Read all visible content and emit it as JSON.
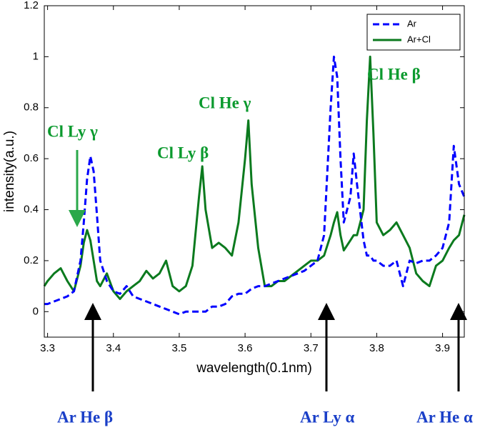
{
  "chart_data": {
    "type": "line",
    "xlabel": "wavelength(0.1nm)",
    "ylabel": "intensity(a.u.)",
    "x": [
      3.295,
      3.3,
      3.31,
      3.32,
      3.33,
      3.34,
      3.35,
      3.355,
      3.36,
      3.365,
      3.37,
      3.375,
      3.38,
      3.39,
      3.4,
      3.41,
      3.42,
      3.43,
      3.44,
      3.45,
      3.46,
      3.47,
      3.48,
      3.49,
      3.5,
      3.51,
      3.52,
      3.53,
      3.535,
      3.54,
      3.55,
      3.56,
      3.57,
      3.58,
      3.59,
      3.6,
      3.605,
      3.61,
      3.62,
      3.63,
      3.64,
      3.65,
      3.66,
      3.67,
      3.68,
      3.69,
      3.7,
      3.71,
      3.72,
      3.73,
      3.735,
      3.74,
      3.745,
      3.75,
      3.76,
      3.765,
      3.77,
      3.78,
      3.785,
      3.79,
      3.795,
      3.8,
      3.81,
      3.82,
      3.83,
      3.84,
      3.85,
      3.86,
      3.87,
      3.88,
      3.89,
      3.9,
      3.91,
      3.917,
      3.925,
      3.933
    ],
    "series": [
      {
        "name": "Ar",
        "color": "#0000ff",
        "dashed": true,
        "values": [
          0.03,
          0.03,
          0.04,
          0.05,
          0.06,
          0.08,
          0.2,
          0.35,
          0.52,
          0.61,
          0.55,
          0.38,
          0.2,
          0.12,
          0.08,
          0.07,
          0.1,
          0.06,
          0.05,
          0.04,
          0.03,
          0.02,
          0.01,
          0.0,
          -0.01,
          0.0,
          0.0,
          0.0,
          0.0,
          0.0,
          0.02,
          0.02,
          0.03,
          0.06,
          0.07,
          0.07,
          0.08,
          0.09,
          0.1,
          0.1,
          0.11,
          0.12,
          0.13,
          0.14,
          0.15,
          0.16,
          0.18,
          0.2,
          0.3,
          0.8,
          1.0,
          0.92,
          0.6,
          0.35,
          0.45,
          0.62,
          0.5,
          0.28,
          0.22,
          0.22,
          0.2,
          0.2,
          0.18,
          0.18,
          0.2,
          0.1,
          0.2,
          0.19,
          0.2,
          0.2,
          0.22,
          0.25,
          0.35,
          0.65,
          0.5,
          0.45
        ]
      },
      {
        "name": "Ar+Cl",
        "color": "#0b7a1e",
        "dashed": false,
        "values": [
          0.1,
          0.12,
          0.15,
          0.17,
          0.12,
          0.08,
          0.18,
          0.27,
          0.32,
          0.28,
          0.2,
          0.12,
          0.1,
          0.15,
          0.08,
          0.05,
          0.08,
          0.1,
          0.12,
          0.16,
          0.13,
          0.15,
          0.2,
          0.1,
          0.08,
          0.1,
          0.18,
          0.45,
          0.57,
          0.4,
          0.25,
          0.27,
          0.25,
          0.22,
          0.35,
          0.6,
          0.75,
          0.5,
          0.25,
          0.1,
          0.1,
          0.12,
          0.12,
          0.14,
          0.16,
          0.18,
          0.2,
          0.2,
          0.22,
          0.3,
          0.35,
          0.39,
          0.3,
          0.24,
          0.28,
          0.3,
          0.3,
          0.4,
          0.75,
          1.0,
          0.7,
          0.35,
          0.3,
          0.32,
          0.35,
          0.3,
          0.25,
          0.15,
          0.12,
          0.1,
          0.18,
          0.2,
          0.25,
          0.28,
          0.3,
          0.38
        ]
      }
    ],
    "xlim": [
      3.295,
      3.933
    ],
    "xticks": [
      3.3,
      3.4,
      3.5,
      3.6,
      3.7,
      3.8,
      3.9
    ],
    "ylim": [
      -0.1,
      1.2
    ],
    "yticks": [
      0,
      0.2,
      0.4,
      0.6,
      0.8,
      1,
      1.2
    ],
    "legend": "top-right",
    "annotations": {
      "cl_ly_gamma": "Cl  Ly γ",
      "cl_ly_beta": "Cl  Ly β",
      "cl_he_gamma": "Cl  He γ",
      "cl_he_beta": "Cl  He β",
      "ar_he_beta": "Ar  He β",
      "ar_ly_alpha": "Ar  Ly α",
      "ar_he_alpha": "Ar  He α"
    }
  }
}
